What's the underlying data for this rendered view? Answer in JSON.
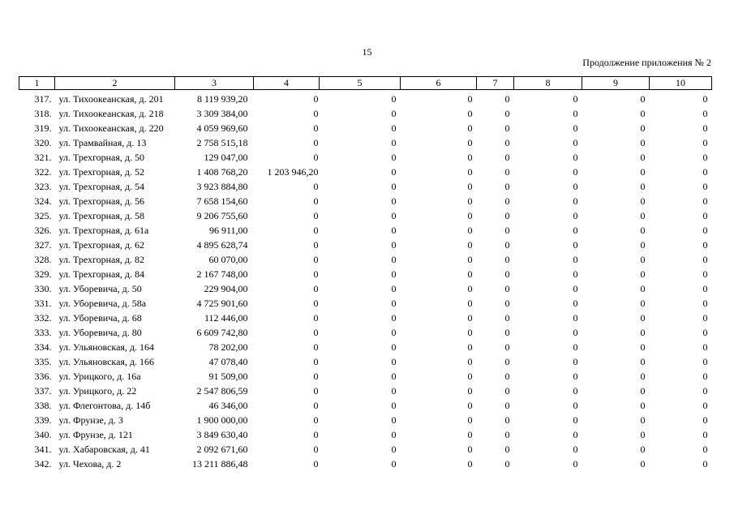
{
  "page": {
    "number": "15",
    "continuation_note": "Продолжение приложения № 2"
  },
  "table": {
    "column_headers": [
      "1",
      "2",
      "3",
      "4",
      "5",
      "6",
      "7",
      "8",
      "9",
      "10"
    ],
    "rows": [
      {
        "no": "317.",
        "address": "ул. Тихоокеанская, д. 201",
        "values": [
          "8 119 939,20",
          "0",
          "0",
          "0",
          "0",
          "0",
          "0",
          "0"
        ]
      },
      {
        "no": "318.",
        "address": "ул. Тихоокеанская, д. 218",
        "values": [
          "3 309 384,00",
          "0",
          "0",
          "0",
          "0",
          "0",
          "0",
          "0"
        ]
      },
      {
        "no": "319.",
        "address": "ул. Тихоокеанская, д. 220",
        "values": [
          "4 059 969,60",
          "0",
          "0",
          "0",
          "0",
          "0",
          "0",
          "0"
        ]
      },
      {
        "no": "320.",
        "address": "ул. Трамвайная, д. 13",
        "values": [
          "2 758 515,18",
          "0",
          "0",
          "0",
          "0",
          "0",
          "0",
          "0"
        ]
      },
      {
        "no": "321.",
        "address": "ул. Трехгорная, д. 50",
        "values": [
          "129 047,00",
          "0",
          "0",
          "0",
          "0",
          "0",
          "0",
          "0"
        ]
      },
      {
        "no": "322.",
        "address": "ул. Трехгорная, д. 52",
        "values": [
          "1 408 768,20",
          "1 203 946,20",
          "0",
          "0",
          "0",
          "0",
          "0",
          "0"
        ]
      },
      {
        "no": "323.",
        "address": "ул. Трехгорная, д. 54",
        "values": [
          "3 923 884,80",
          "0",
          "0",
          "0",
          "0",
          "0",
          "0",
          "0"
        ]
      },
      {
        "no": "324.",
        "address": "ул. Трехгорная, д. 56",
        "values": [
          "7 658 154,60",
          "0",
          "0",
          "0",
          "0",
          "0",
          "0",
          "0"
        ]
      },
      {
        "no": "325.",
        "address": "ул. Трехгорная, д. 58",
        "values": [
          "9 206 755,60",
          "0",
          "0",
          "0",
          "0",
          "0",
          "0",
          "0"
        ]
      },
      {
        "no": "326.",
        "address": "ул. Трехгорная, д. 61а",
        "values": [
          "96 911,00",
          "0",
          "0",
          "0",
          "0",
          "0",
          "0",
          "0"
        ]
      },
      {
        "no": "327.",
        "address": "ул. Трехгорная, д. 62",
        "values": [
          "4 895 628,74",
          "0",
          "0",
          "0",
          "0",
          "0",
          "0",
          "0"
        ]
      },
      {
        "no": "328.",
        "address": "ул. Трехгорная, д. 82",
        "values": [
          "60 070,00",
          "0",
          "0",
          "0",
          "0",
          "0",
          "0",
          "0"
        ]
      },
      {
        "no": "329.",
        "address": "ул. Трехгорная, д. 84",
        "values": [
          "2 167 748,00",
          "0",
          "0",
          "0",
          "0",
          "0",
          "0",
          "0"
        ]
      },
      {
        "no": "330.",
        "address": "ул. Уборевича, д. 50",
        "values": [
          "229 904,00",
          "0",
          "0",
          "0",
          "0",
          "0",
          "0",
          "0"
        ]
      },
      {
        "no": "331.",
        "address": "ул. Уборевича, д. 58а",
        "values": [
          "4 725 901,60",
          "0",
          "0",
          "0",
          "0",
          "0",
          "0",
          "0"
        ]
      },
      {
        "no": "332.",
        "address": "ул. Уборевича, д. 68",
        "values": [
          "112 446,00",
          "0",
          "0",
          "0",
          "0",
          "0",
          "0",
          "0"
        ]
      },
      {
        "no": "333.",
        "address": "ул. Уборевича, д. 80",
        "values": [
          "6 609 742,80",
          "0",
          "0",
          "0",
          "0",
          "0",
          "0",
          "0"
        ]
      },
      {
        "no": "334.",
        "address": "ул. Ульяновская, д. 164",
        "values": [
          "78 202,00",
          "0",
          "0",
          "0",
          "0",
          "0",
          "0",
          "0"
        ]
      },
      {
        "no": "335.",
        "address": "ул. Ульяновская, д. 166",
        "values": [
          "47 078,40",
          "0",
          "0",
          "0",
          "0",
          "0",
          "0",
          "0"
        ]
      },
      {
        "no": "336.",
        "address": "ул. Урицкого, д. 16а",
        "values": [
          "91 509,00",
          "0",
          "0",
          "0",
          "0",
          "0",
          "0",
          "0"
        ]
      },
      {
        "no": "337.",
        "address": "ул. Урицкого, д. 22",
        "values": [
          "2 547 806,59",
          "0",
          "0",
          "0",
          "0",
          "0",
          "0",
          "0"
        ]
      },
      {
        "no": "338.",
        "address": "ул. Флегонтова, д. 14б",
        "values": [
          "46 346,00",
          "0",
          "0",
          "0",
          "0",
          "0",
          "0",
          "0"
        ]
      },
      {
        "no": "339.",
        "address": "ул. Фрунзе, д. 3",
        "values": [
          "1 900 000,00",
          "0",
          "0",
          "0",
          "0",
          "0",
          "0",
          "0"
        ]
      },
      {
        "no": "340.",
        "address": "ул. Фрунзе, д. 121",
        "values": [
          "3 849 630,40",
          "0",
          "0",
          "0",
          "0",
          "0",
          "0",
          "0"
        ]
      },
      {
        "no": "341.",
        "address": "ул. Хабаровская, д. 41",
        "values": [
          "2 092 671,60",
          "0",
          "0",
          "0",
          "0",
          "0",
          "0",
          "0"
        ]
      },
      {
        "no": "342.",
        "address": "ул. Чехова, д. 2",
        "values": [
          "13 211 886,48",
          "0",
          "0",
          "0",
          "0",
          "0",
          "0",
          "0"
        ]
      }
    ]
  }
}
